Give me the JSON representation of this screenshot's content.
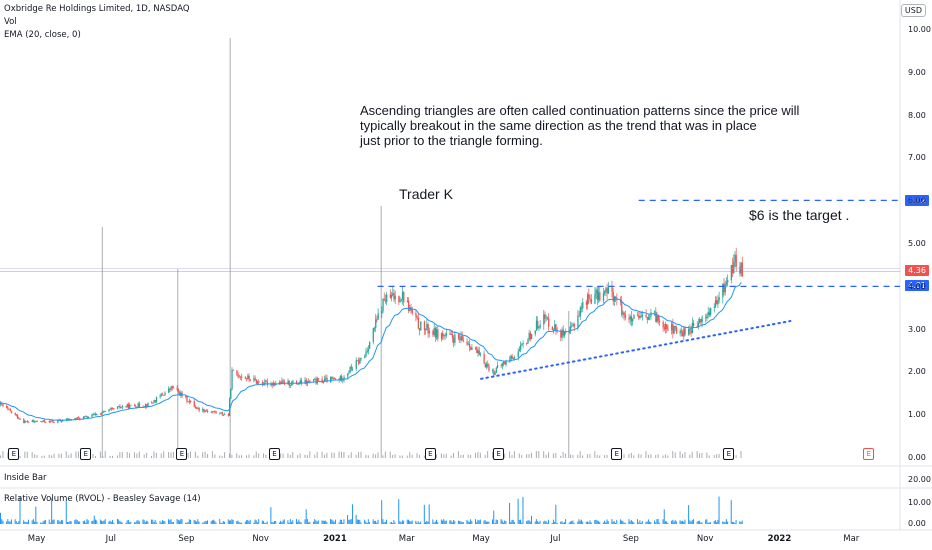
{
  "header": {
    "symbol_line": "Oxbridge Re Holdings Limited, 1D, NASDAQ",
    "vol_label": "Vol",
    "ema_label": "EMA (20, close, 0)",
    "currency": "USD"
  },
  "annotations": {
    "note_line1": " Ascending triangles are often called continuation patterns since the price will",
    "note_line2": "typically breakout in the same direction as the trend that was in place",
    "note_line3": "just prior to the triangle forming.",
    "author": "Trader K",
    "target_text": "$6 is the target ."
  },
  "price_tags": {
    "target": "6.02",
    "last": "4.36",
    "resistance": "4.01"
  },
  "panes": {
    "inside_bar": "Inside Bar",
    "rvol": "Relative Volume (RVOL) - Beasley Savage (14)"
  },
  "earnings_marker": "E",
  "colors": {
    "up": "#26a69a",
    "down": "#ef5350",
    "ema": "#2196f3",
    "levels": "#2962ff",
    "volume": "#a7adb3"
  },
  "chart_data": {
    "type": "candlestick",
    "title": "Oxbridge Re Holdings Limited, 1D, NASDAQ",
    "price_ylim": [
      0,
      10.5
    ],
    "price_ticks": [
      "10.00",
      "9.00",
      "8.00",
      "7.00",
      "6.00",
      "5.00",
      "4.00",
      "3.00",
      "2.00",
      "1.00",
      "0.00"
    ],
    "rvol_ticks": [
      "20.00",
      "10.00",
      "0.00"
    ],
    "x_ticks": [
      "May",
      "Jul",
      "Sep",
      "Nov",
      "2021",
      "Mar",
      "May",
      "Jul",
      "Sep",
      "Nov",
      "2022",
      "Mar"
    ],
    "price_path": [
      {
        "date": "2020-04-01",
        "price": 1.25
      },
      {
        "date": "2020-04-20",
        "price": 0.85
      },
      {
        "date": "2020-05-15",
        "price": 0.85
      },
      {
        "date": "2020-06-10",
        "price": 0.95
      },
      {
        "date": "2020-07-10",
        "price": 1.2
      },
      {
        "date": "2020-08-01",
        "price": 1.25
      },
      {
        "date": "2020-08-20",
        "price": 1.65
      },
      {
        "date": "2020-09-10",
        "price": 1.15
      },
      {
        "date": "2020-10-05",
        "price": 1.0
      },
      {
        "date": "2020-10-08",
        "price": 2.0
      },
      {
        "date": "2020-11-01",
        "price": 1.75
      },
      {
        "date": "2020-12-01",
        "price": 1.75
      },
      {
        "date": "2021-01-05",
        "price": 1.85
      },
      {
        "date": "2021-01-25",
        "price": 2.4
      },
      {
        "date": "2021-02-10",
        "price": 3.7
      },
      {
        "date": "2021-02-25",
        "price": 3.8
      },
      {
        "date": "2021-03-10",
        "price": 3.1
      },
      {
        "date": "2021-03-25",
        "price": 2.9
      },
      {
        "date": "2021-04-20",
        "price": 2.7
      },
      {
        "date": "2021-05-10",
        "price": 2.0
      },
      {
        "date": "2021-06-01",
        "price": 2.5
      },
      {
        "date": "2021-06-20",
        "price": 3.3
      },
      {
        "date": "2021-07-10",
        "price": 2.8
      },
      {
        "date": "2021-07-25",
        "price": 3.7
      },
      {
        "date": "2021-08-15",
        "price": 3.9
      },
      {
        "date": "2021-08-30",
        "price": 3.2
      },
      {
        "date": "2021-09-20",
        "price": 3.3
      },
      {
        "date": "2021-10-10",
        "price": 2.9
      },
      {
        "date": "2021-10-25",
        "price": 3.1
      },
      {
        "date": "2021-11-10",
        "price": 3.6
      },
      {
        "date": "2021-11-25",
        "price": 4.6
      },
      {
        "date": "2021-12-01",
        "price": 4.36
      }
    ],
    "volume_spikes": [
      {
        "date": "2020-06-24",
        "rel": 0.55
      },
      {
        "date": "2020-08-25",
        "rel": 0.45
      },
      {
        "date": "2020-10-07",
        "rel": 1.0
      },
      {
        "date": "2021-02-08",
        "rel": 0.6
      },
      {
        "date": "2021-07-12",
        "rel": 0.35
      }
    ],
    "levels": [
      {
        "name": "target",
        "price": 6.02
      },
      {
        "name": "resistance",
        "price": 4.01
      },
      {
        "name": "last",
        "price": 4.36
      }
    ],
    "support_trendline": [
      {
        "date": "2021-05-01",
        "price": 1.85
      },
      {
        "date": "2022-01-10",
        "price": 3.2
      }
    ],
    "xlim": [
      "2020-04-01",
      "2022-04-10"
    ]
  }
}
